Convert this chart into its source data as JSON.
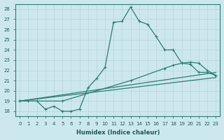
{
  "title": "",
  "xlabel": "Humidex (Indice chaleur)",
  "ylabel": "",
  "bg_color": "#cce8ee",
  "grid_color": "#b8d8de",
  "line_color": "#2e7d6e",
  "xlim": [
    -0.5,
    23.5
  ],
  "ylim": [
    17.5,
    28.5
  ],
  "yticks": [
    18,
    19,
    20,
    21,
    22,
    23,
    24,
    25,
    26,
    27,
    28
  ],
  "xticks": [
    0,
    1,
    2,
    3,
    4,
    5,
    6,
    7,
    8,
    9,
    10,
    11,
    12,
    13,
    14,
    15,
    16,
    17,
    18,
    19,
    20,
    21,
    22,
    23
  ],
  "series": [
    {
      "x": [
        0,
        1,
        2,
        3,
        4,
        5,
        6,
        7,
        8,
        9,
        10,
        11,
        12,
        13,
        14,
        15,
        16,
        17,
        18,
        19,
        20,
        21,
        22,
        23
      ],
      "y": [
        19,
        19,
        19,
        18.2,
        18.5,
        18,
        18,
        18.2,
        20.3,
        21.2,
        22.3,
        26.7,
        26.8,
        28.2,
        26.8,
        26.5,
        25.3,
        24.0,
        24.0,
        22.7,
        22.6,
        21.8,
        21.8,
        21.5
      ],
      "marker": "+",
      "markersize": 3.5,
      "linewidth": 0.9,
      "has_markers": true
    },
    {
      "x": [
        0,
        5,
        13,
        17,
        18,
        19,
        20,
        21,
        22,
        23
      ],
      "y": [
        19,
        19,
        21.0,
        22.2,
        22.5,
        22.7,
        22.8,
        22.7,
        22.0,
        21.5
      ],
      "marker": "+",
      "markersize": 3.5,
      "linewidth": 0.9,
      "has_markers": true
    },
    {
      "x": [
        0,
        23
      ],
      "y": [
        19,
        21.8
      ],
      "marker": null,
      "markersize": 0,
      "linewidth": 0.9,
      "has_markers": false
    },
    {
      "x": [
        0,
        23
      ],
      "y": [
        19,
        21.3
      ],
      "marker": null,
      "markersize": 0,
      "linewidth": 0.9,
      "has_markers": false
    }
  ]
}
